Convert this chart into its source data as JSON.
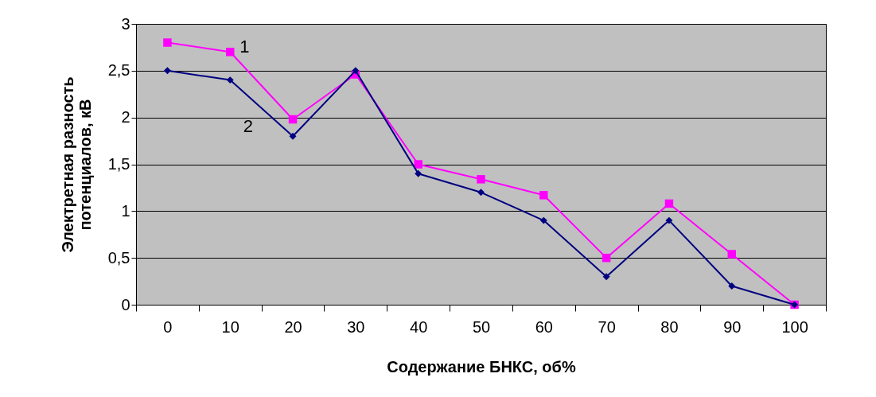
{
  "chart_data": {
    "type": "line",
    "xlabel": "Содержание БНКС, об%",
    "ylabel": "Электретная разность\nпотенциалов, кВ",
    "categories": [
      "0",
      "10",
      "20",
      "30",
      "40",
      "50",
      "60",
      "70",
      "80",
      "90",
      "100"
    ],
    "series": [
      {
        "name": "1",
        "color": "#ff00ff",
        "marker": "square",
        "values": [
          2.8,
          2.7,
          1.98,
          2.46,
          1.5,
          1.34,
          1.17,
          0.5,
          1.08,
          0.54,
          0
        ]
      },
      {
        "name": "2",
        "color": "#000080",
        "marker": "diamond",
        "values": [
          2.5,
          2.4,
          1.8,
          2.5,
          1.4,
          1.2,
          0.9,
          0.3,
          0.9,
          0.2,
          0
        ]
      }
    ],
    "ylim": [
      0,
      3
    ],
    "yticks": [
      0,
      {
        "value": 0.5,
        "label": "0,5"
      },
      1,
      {
        "value": 1.5,
        "label": "1,5"
      },
      2,
      {
        "value": 2.5,
        "label": "2,5"
      },
      3
    ],
    "grid": "y",
    "legend": false
  }
}
